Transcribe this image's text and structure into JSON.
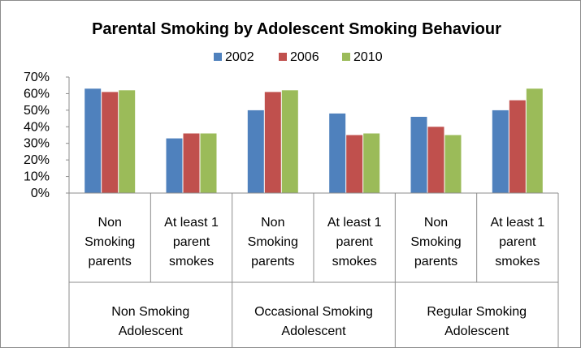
{
  "chart_data": {
    "type": "bar",
    "title": "Parental Smoking by Adolescent Smoking Behaviour",
    "ylim": [
      0,
      70
    ],
    "y_ticks": [
      "0%",
      "10%",
      "20%",
      "30%",
      "40%",
      "50%",
      "60%",
      "70%"
    ],
    "legend_position": "top",
    "grid": false,
    "categories": [
      {
        "lines": [
          "Non",
          "Smoking",
          "parents"
        ]
      },
      {
        "lines": [
          "At least 1",
          "parent",
          "smokes"
        ]
      },
      {
        "lines": [
          "Non",
          "Smoking",
          "parents"
        ]
      },
      {
        "lines": [
          "At least 1",
          "parent",
          "smokes"
        ]
      },
      {
        "lines": [
          "Non",
          "Smoking",
          "parents"
        ]
      },
      {
        "lines": [
          "At least 1",
          "parent",
          "smokes"
        ]
      }
    ],
    "groups": [
      {
        "lines": [
          "Non Smoking",
          "Adolescent"
        ]
      },
      {
        "lines": [
          "Occasional Smoking",
          "Adolescent"
        ]
      },
      {
        "lines": [
          "Regular Smoking",
          "Adolescent"
        ]
      }
    ],
    "series": [
      {
        "name": "2002",
        "color": "#4f81bd",
        "values": [
          63,
          33,
          50,
          48,
          46,
          50
        ]
      },
      {
        "name": "2006",
        "color": "#c0504d",
        "values": [
          61,
          36,
          61,
          35,
          40,
          56
        ]
      },
      {
        "name": "2010",
        "color": "#9bbb59",
        "values": [
          62,
          36,
          62,
          36,
          35,
          63
        ]
      }
    ]
  }
}
